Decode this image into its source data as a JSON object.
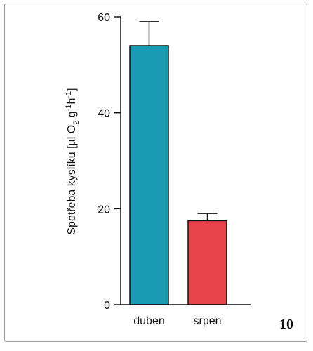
{
  "panel_number": "10",
  "chart_data": {
    "type": "bar",
    "categories": [
      "duben",
      "srpen"
    ],
    "values": [
      54,
      17.5
    ],
    "errors": [
      5,
      1.5
    ],
    "colors": [
      "#1b9ab3",
      "#e8434b"
    ],
    "ylim": [
      0,
      60
    ],
    "yticks": [
      0,
      20,
      40,
      60
    ],
    "xlabel": "",
    "ylabel": {
      "main": "Spotřeba kyslíku [µl O",
      "o2_sub": "2",
      "mid": " g",
      "g_sup": "-1",
      "h": "h",
      "h_sup": "-1",
      "end": "]"
    },
    "grid": false
  }
}
